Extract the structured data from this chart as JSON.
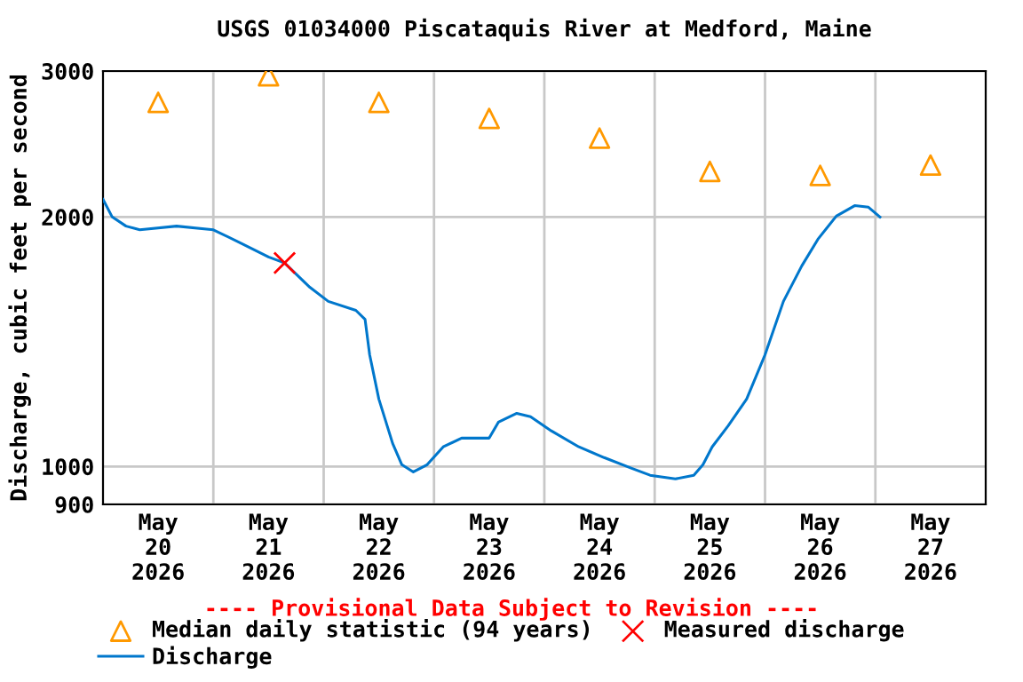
{
  "chart_data": {
    "type": "line",
    "title": "USGS 01034000 Piscataquis River at Medford, Maine",
    "ylabel": "Discharge, cubic feet per second",
    "log": "y",
    "ylim": [
      900,
      3000
    ],
    "yticks": [
      900,
      1000,
      2000,
      3000
    ],
    "xlim": [
      "2026-05-20T00:00",
      "2026-05-28T00:00"
    ],
    "xticks": [
      {
        "value": "2026-05-20T12:00",
        "label": "May\n20\n2026"
      },
      {
        "value": "2026-05-21T12:00",
        "label": "May\n21\n2026"
      },
      {
        "value": "2026-05-22T12:00",
        "label": "May\n22\n2026"
      },
      {
        "value": "2026-05-23T12:00",
        "label": "May\n23\n2026"
      },
      {
        "value": "2026-05-24T12:00",
        "label": "May\n24\n2026"
      },
      {
        "value": "2026-05-25T12:00",
        "label": "May\n25\n2026"
      },
      {
        "value": "2026-05-26T12:00",
        "label": "May\n26\n2026"
      },
      {
        "value": "2026-05-27T12:00",
        "label": "May\n27\n2026"
      },
      {
        "value": "2026-05-21T00:00",
        "label": null
      },
      {
        "value": "2026-05-22T00:00",
        "label": null
      },
      {
        "value": "2026-05-23T00:00",
        "label": null
      },
      {
        "value": "2026-05-24T00:00",
        "label": null
      },
      {
        "value": "2026-05-25T00:00",
        "label": null
      },
      {
        "value": "2026-05-26T00:00",
        "label": null
      },
      {
        "value": "2026-05-27T00:00",
        "label": null
      }
    ],
    "grid": true,
    "legend": "bottom",
    "annotations": [
      "---- Provisional Data Subject to Revision ----"
    ],
    "series": [
      {
        "name": "Median daily statistic (94 years)",
        "type": "scatter",
        "marker": "triangle",
        "color": "#ff9900",
        "x": [
          "2026-05-20T12:00",
          "2026-05-21T12:00",
          "2026-05-22T12:00",
          "2026-05-23T12:00",
          "2026-05-24T12:00",
          "2026-05-25T12:00",
          "2026-05-26T12:00",
          "2026-05-27T12:00"
        ],
        "values": [
          2750,
          2960,
          2750,
          2630,
          2490,
          2270,
          2245,
          2310
        ]
      },
      {
        "name": "Measured discharge",
        "type": "scatter",
        "marker": "cross",
        "color": "#ff0000",
        "x": [
          "2026-05-21T15:30"
        ],
        "values": [
          1760
        ]
      },
      {
        "name": "Discharge",
        "marker": "none",
        "color": "#0077cc",
        "x": [
          "2026-05-20T00:00",
          "2026-05-20T02:00",
          "2026-05-20T05:00",
          "2026-05-20T08:00",
          "2026-05-20T16:00",
          "2026-05-21T00:00",
          "2026-05-21T06:00",
          "2026-05-21T12:00",
          "2026-05-21T15:30",
          "2026-05-21T21:00",
          "2026-05-22T01:00",
          "2026-05-22T07:00",
          "2026-05-22T09:00",
          "2026-05-22T10:00",
          "2026-05-22T12:00",
          "2026-05-22T15:00",
          "2026-05-22T17:00",
          "2026-05-22T19:30",
          "2026-05-22T22:30",
          "2026-05-23T02:00",
          "2026-05-23T06:00",
          "2026-05-23T12:00",
          "2026-05-23T14:00",
          "2026-05-23T18:00",
          "2026-05-23T21:00",
          "2026-05-24T01:30",
          "2026-05-24T07:30",
          "2026-05-24T13:00",
          "2026-05-24T19:00",
          "2026-05-24T23:00",
          "2026-05-25T04:30",
          "2026-05-25T08:30",
          "2026-05-25T10:30",
          "2026-05-25T12:30",
          "2026-05-25T16:00",
          "2026-05-25T20:00",
          "2026-05-26T00:00",
          "2026-05-26T04:00",
          "2026-05-26T08:00",
          "2026-05-26T11:30",
          "2026-05-26T15:30",
          "2026-05-26T19:30",
          "2026-05-26T22:30",
          "2026-05-27T01:00"
        ],
        "values": [
          2100,
          2000,
          1950,
          1930,
          1950,
          1930,
          1860,
          1790,
          1760,
          1645,
          1582,
          1543,
          1505,
          1364,
          1206,
          1066,
          1005,
          985,
          1005,
          1056,
          1082,
          1082,
          1131,
          1159,
          1148,
          1104,
          1056,
          1025,
          995,
          976,
          966,
          976,
          1005,
          1056,
          1120,
          1206,
          1364,
          1582,
          1746,
          1880,
          2005,
          2064,
          2055,
          2000
        ]
      }
    ]
  }
}
